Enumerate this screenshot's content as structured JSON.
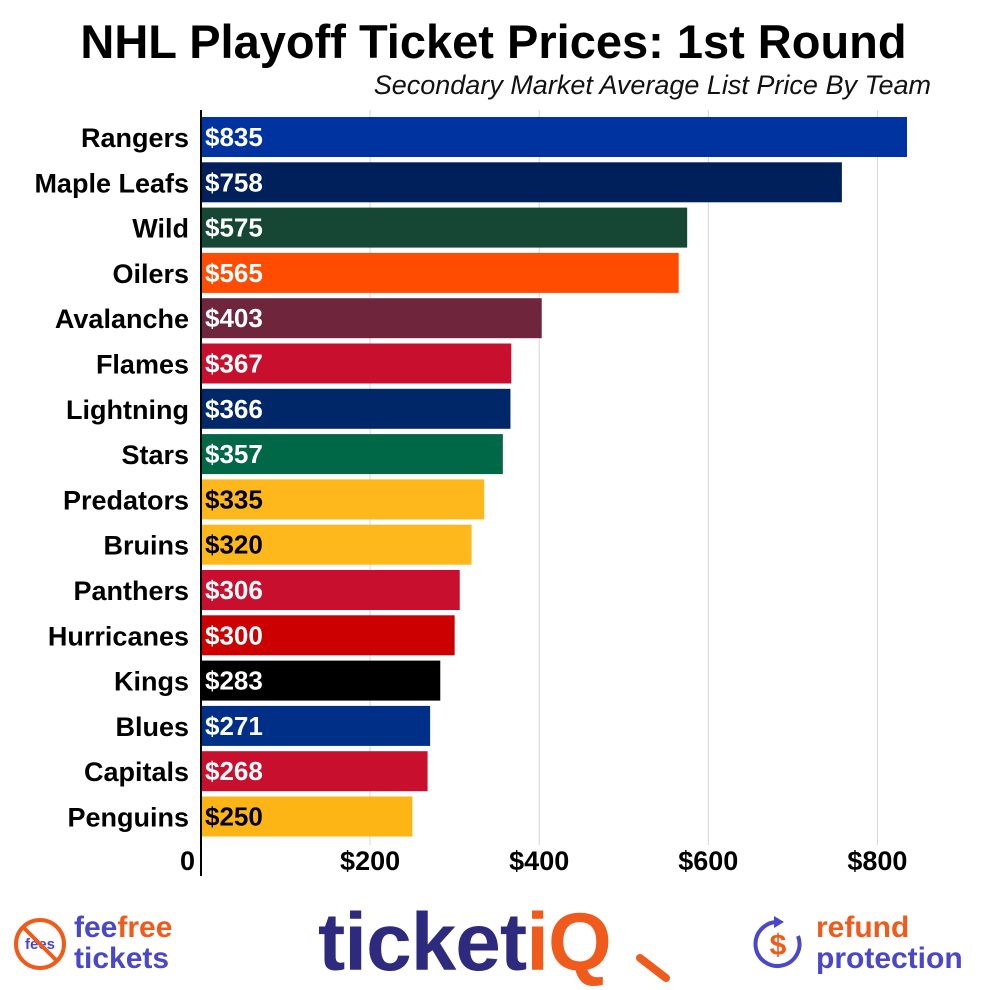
{
  "chart_data": {
    "type": "bar",
    "orientation": "horizontal",
    "title": "NHL Playoff Ticket Prices: 1st Round",
    "subtitle": "Secondary Market Average List Price By Team",
    "xlabel": "",
    "ylabel": "",
    "xlim": [
      0,
      870
    ],
    "x_ticks": [
      0,
      200,
      400,
      600,
      800
    ],
    "x_tick_labels": [
      "0",
      "$200",
      "$400",
      "$600",
      "$800"
    ],
    "grid": "vertical",
    "legend": "none",
    "categories": [
      "Rangers",
      "Maple Leafs",
      "Wild",
      "Oilers",
      "Avalanche",
      "Flames",
      "Lightning",
      "Stars",
      "Predators",
      "Bruins",
      "Panthers",
      "Hurricanes",
      "Kings",
      "Blues",
      "Capitals",
      "Penguins"
    ],
    "values": [
      835,
      758,
      575,
      565,
      403,
      367,
      366,
      357,
      335,
      320,
      306,
      300,
      283,
      271,
      268,
      250
    ],
    "value_labels": [
      "$835",
      "$758",
      "$575",
      "$565",
      "$403",
      "$367",
      "$366",
      "$357",
      "$335",
      "$320",
      "$306",
      "$300",
      "$283",
      "$271",
      "$268",
      "$250"
    ],
    "colors": [
      "#0033A0",
      "#00205B",
      "#154734",
      "#FF4C00",
      "#6F263D",
      "#C8102E",
      "#002868",
      "#006847",
      "#FFB81C",
      "#FFB81C",
      "#C8102E",
      "#CC0000",
      "#000000",
      "#002F87",
      "#C8102E",
      "#FCB514"
    ],
    "label_colors": [
      "#FFFFFF",
      "#FFFFFF",
      "#FFFFFF",
      "#FFFFFF",
      "#FFFFFF",
      "#FFFFFF",
      "#FFFFFF",
      "#FFFFFF",
      "#000000",
      "#000000",
      "#FFFFFF",
      "#FFFFFF",
      "#FFFFFF",
      "#FFFFFF",
      "#FFFFFF",
      "#000000"
    ]
  },
  "footer": {
    "feefree": {
      "line1_a": "fee",
      "line1_b": "free",
      "line2": "tickets",
      "badge": "fees",
      "icon": "no-fees-icon"
    },
    "ticketiq": {
      "brand_a": "ticket",
      "brand_b": "iQ",
      "icon": "magnifier-q-icon"
    },
    "refund": {
      "line1": "refund",
      "line2": "protection",
      "icon": "dollar-refund-icon"
    },
    "colors": {
      "orange": "#F05A1A",
      "purple": "#4A47C9",
      "navy": "#2E2A7E"
    }
  }
}
